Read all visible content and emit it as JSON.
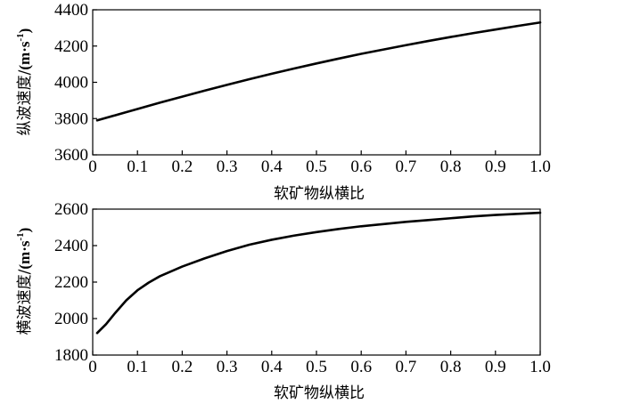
{
  "chart_data": [
    {
      "type": "line",
      "xlabel": "软矿物纵横比",
      "ylabel_text": "纵波速度/",
      "ylabel_unit": "(m·s",
      "ylabel_sup": "-1",
      "ylabel_close": ")",
      "xlim": [
        0,
        1.0
      ],
      "ylim": [
        3600,
        4400
      ],
      "xticks": [
        "0",
        "0.1",
        "0.2",
        "0.3",
        "0.4",
        "0.5",
        "0.6",
        "0.7",
        "0.8",
        "0.9",
        "1.0"
      ],
      "yticks": [
        "3600",
        "3800",
        "4000",
        "4200",
        "4400"
      ],
      "grid": false,
      "series": [
        {
          "x": [
            0.01,
            0.05,
            0.1,
            0.15,
            0.2,
            0.25,
            0.3,
            0.35,
            0.4,
            0.45,
            0.5,
            0.55,
            0.6,
            0.65,
            0.7,
            0.75,
            0.8,
            0.85,
            0.9,
            0.95,
            1.0
          ],
          "y": [
            3790,
            3818,
            3853,
            3888,
            3921,
            3954,
            3986,
            4017,
            4047,
            4076,
            4104,
            4131,
            4157,
            4181,
            4205,
            4228,
            4250,
            4271,
            4291,
            4311,
            4330
          ]
        }
      ]
    },
    {
      "type": "line",
      "xlabel": "软矿物纵横比",
      "ylabel_text": "横波速度/",
      "ylabel_unit": "(m·s",
      "ylabel_sup": "-1",
      "ylabel_close": ")",
      "xlim": [
        0,
        1.0
      ],
      "ylim": [
        1800,
        2600
      ],
      "xticks": [
        "0",
        "0.1",
        "0.2",
        "0.3",
        "0.4",
        "0.5",
        "0.6",
        "0.7",
        "0.8",
        "0.9",
        "1.0"
      ],
      "yticks": [
        "1800",
        "2000",
        "2200",
        "2400",
        "2600"
      ],
      "grid": false,
      "series": [
        {
          "x": [
            0.01,
            0.03,
            0.05,
            0.075,
            0.1,
            0.125,
            0.15,
            0.2,
            0.25,
            0.3,
            0.35,
            0.4,
            0.45,
            0.5,
            0.55,
            0.6,
            0.65,
            0.7,
            0.75,
            0.8,
            0.85,
            0.9,
            0.95,
            1.0
          ],
          "y": [
            1921,
            1970,
            2030,
            2100,
            2155,
            2197,
            2232,
            2285,
            2330,
            2370,
            2405,
            2432,
            2455,
            2474,
            2491,
            2506,
            2518,
            2530,
            2540,
            2550,
            2560,
            2568,
            2574,
            2580
          ]
        }
      ]
    }
  ]
}
